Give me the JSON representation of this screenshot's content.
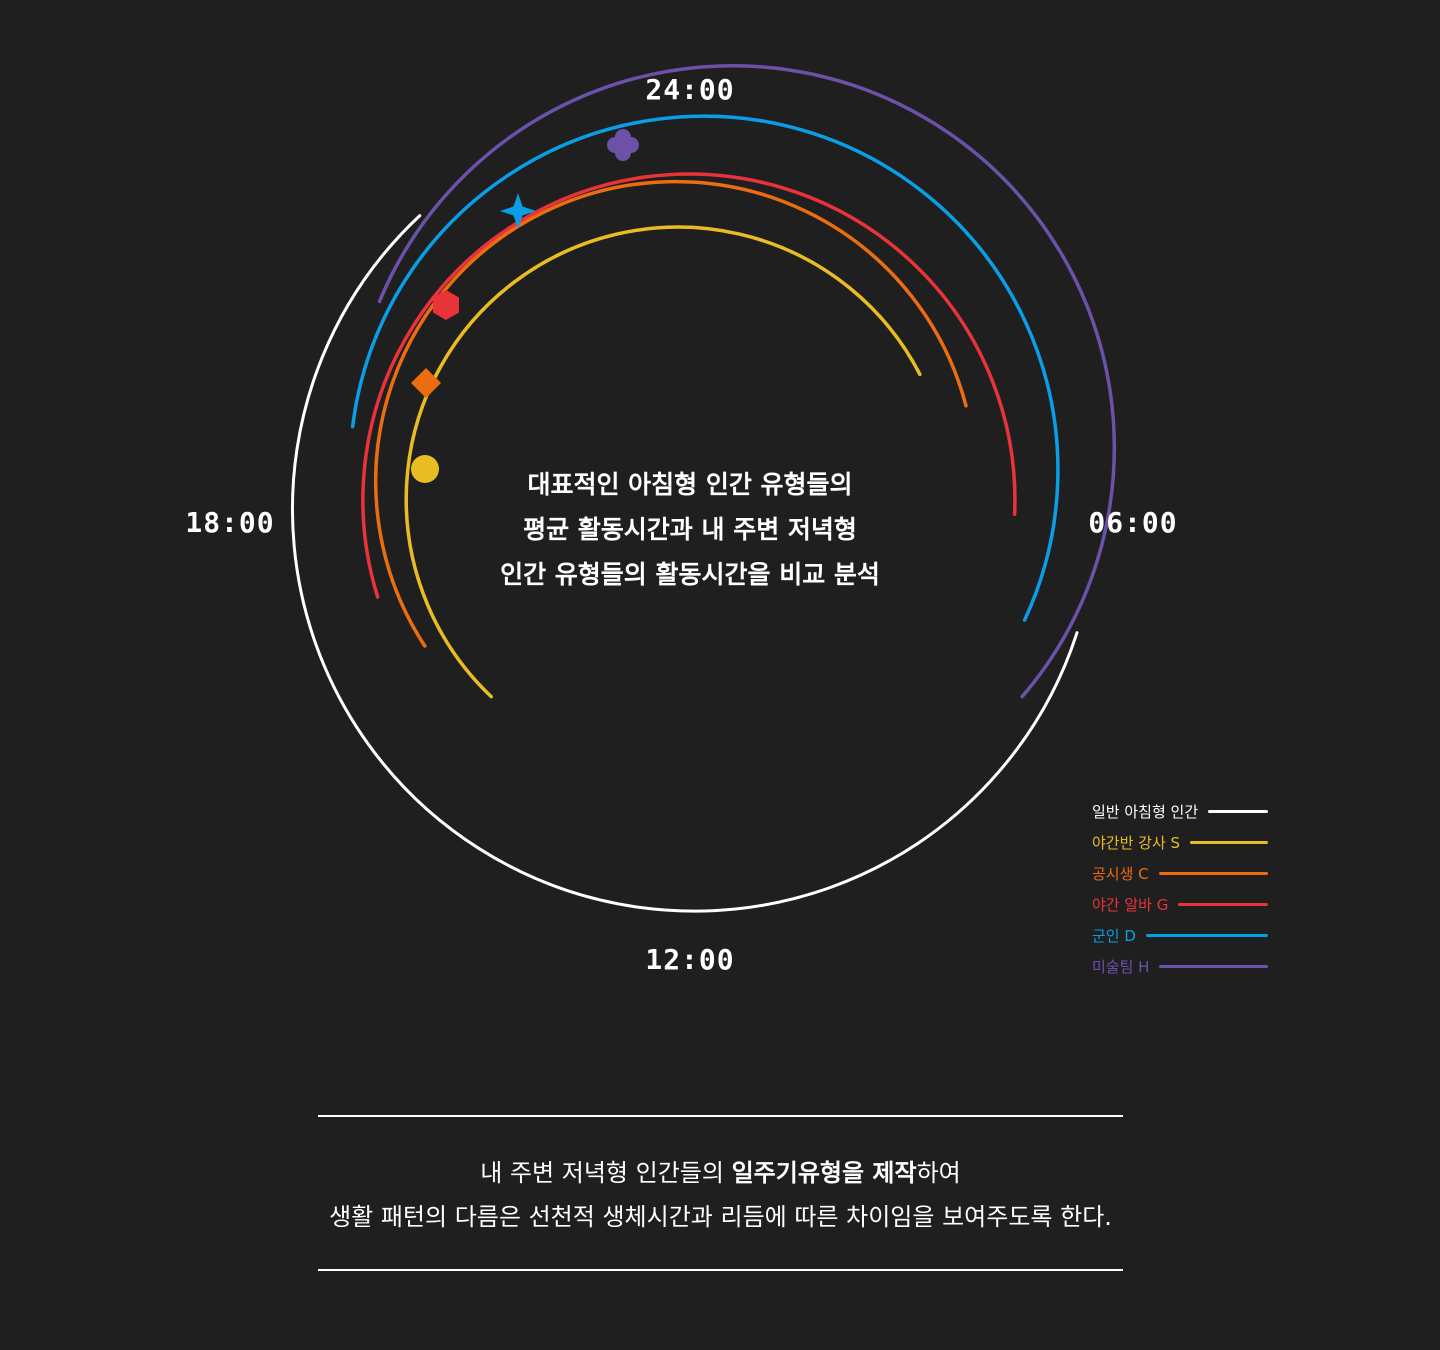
{
  "clock": {
    "top_label": "24:00",
    "right_label": "06:00",
    "bottom_label": "12:00",
    "left_label": "18:00"
  },
  "center_text": {
    "line1": "대표적인 아침형 인간 유형들의",
    "line2": "평균 활동시간과 내 주변 저녁형",
    "line3": "인간 유형들의 활동시간을 비교 분석"
  },
  "legend": [
    {
      "label": "일반 아침형 인간",
      "color": "#ffffff"
    },
    {
      "label": "야간반 강사 S",
      "color": "#e9bd22"
    },
    {
      "label": "공시생 C",
      "color": "#ec6d0f"
    },
    {
      "label": "야간 알바 G",
      "color": "#e8333a"
    },
    {
      "label": "군인 D",
      "color": "#0a9ee6"
    },
    {
      "label": "미술팀 H",
      "color": "#6b52a8"
    }
  ],
  "footer": {
    "line1_pre": "내 주변 저녁형 인간들의 ",
    "line1_bold": "일주기유형을 제작",
    "line1_post": "하여",
    "line2": "생활 패턴의 다름은 선천적 생체시간과 리듬에 따른 차이임을 보여주도록 한다."
  }
}
